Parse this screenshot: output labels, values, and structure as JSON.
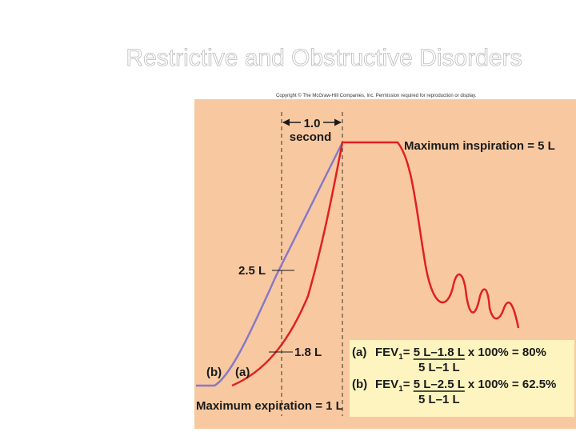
{
  "header": {
    "title": "Restrictive and Obstructive Disorders",
    "copyright": "Copyright © The McGraw-Hill Companies, Inc. Permission required for reproduction or display."
  },
  "figure": {
    "interval": {
      "value": "1.0",
      "unit": "second"
    },
    "max_inspiration": "Maximum inspiration = 5 L",
    "max_expiration": "Maximum expiration = 1 L",
    "marker_b": "2.5 L",
    "marker_a": "1.8 L",
    "curve_labels": [
      "(b)",
      "(a)"
    ],
    "equations": [
      {
        "label": "(a)",
        "term": "FEV",
        "subscript": "1",
        "numerator_prefix": "= ",
        "numerator": "5 L–1.8 L",
        "result": "x 100% = 80%",
        "denominator": "5 L–1 L"
      },
      {
        "label": "(b)",
        "term": "FEV",
        "subscript": "1",
        "numerator_prefix": "= ",
        "numerator": "5 L–2.5 L",
        "result": "x 100% = 62.5%",
        "denominator": "5 L–1 L"
      }
    ]
  }
}
